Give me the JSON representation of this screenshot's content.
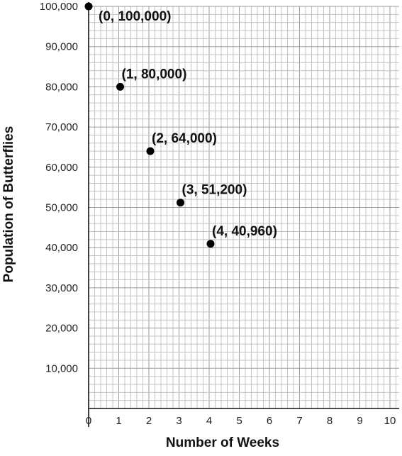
{
  "chart_data": {
    "type": "scatter",
    "title": "",
    "xlabel": "Number of Weeks",
    "ylabel": "Population of Butterflies",
    "xlim": [
      0,
      10
    ],
    "ylim": [
      0,
      100000
    ],
    "x_ticks": [
      "0",
      "1",
      "2",
      "3",
      "4",
      "5",
      "6",
      "7",
      "8",
      "9",
      "10"
    ],
    "y_ticks": [
      "10,000",
      "20,000",
      "30,000",
      "40,000",
      "50,000",
      "60,000",
      "70,000",
      "80,000",
      "90,000",
      "100,000"
    ],
    "grid": true,
    "points": [
      {
        "x": 0,
        "y": 100000,
        "label": "(0, 100,000)"
      },
      {
        "x": 1,
        "y": 80000,
        "label": "(1, 80,000)"
      },
      {
        "x": 2,
        "y": 64000,
        "label": "(2, 64,000)"
      },
      {
        "x": 3,
        "y": 51200,
        "label": "(3, 51,200)"
      },
      {
        "x": 4,
        "y": 40960,
        "label": "(4, 40,960)"
      }
    ]
  }
}
